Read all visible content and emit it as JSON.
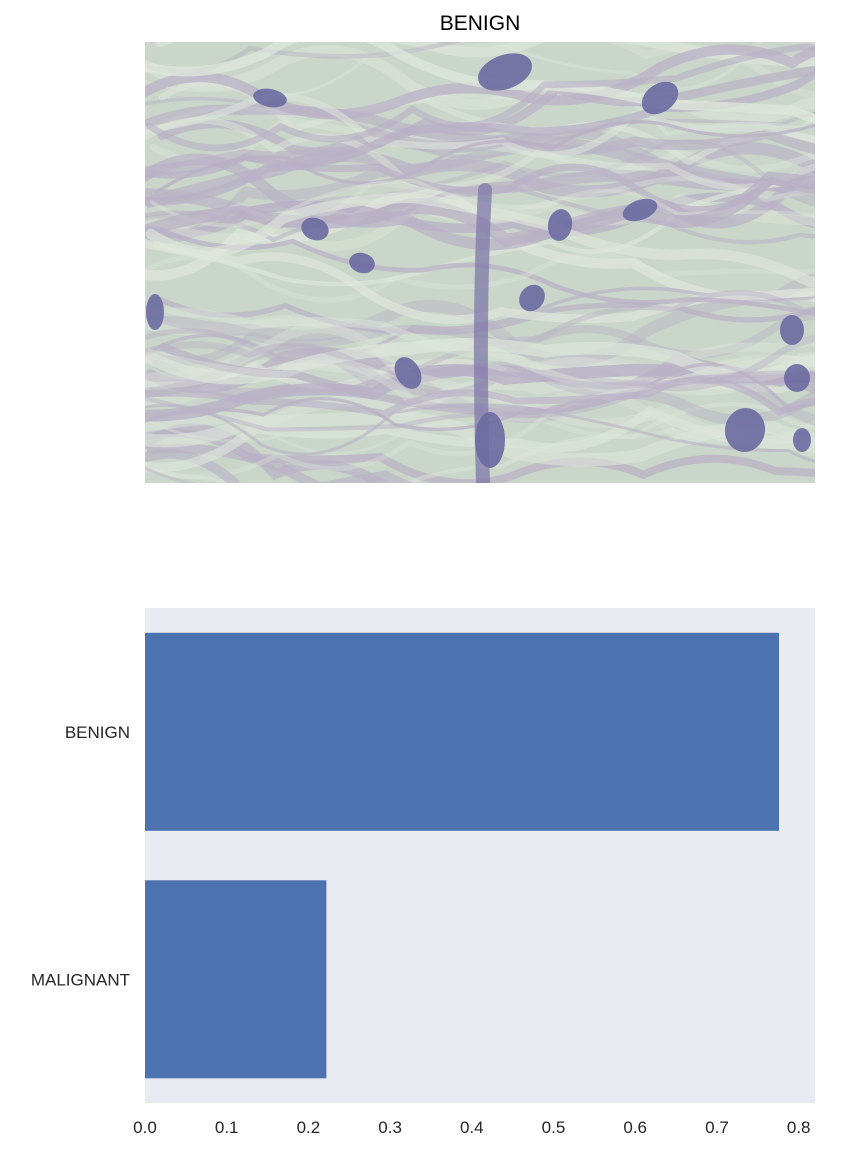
{
  "figure": {
    "image_panel": {
      "title": "BENIGN",
      "image_kind": "histology-tissue-micrograph",
      "palette": {
        "background": "#c9d6c9",
        "stroma": "#b9b0c6",
        "nuclei": "#6b6aa1"
      }
    }
  },
  "chart_data": {
    "type": "bar",
    "orientation": "horizontal",
    "title": "",
    "xlabel": "",
    "ylabel": "",
    "categories": [
      "BENIGN",
      "MALIGNANT"
    ],
    "values": [
      0.776,
      0.222
    ],
    "xlim": [
      0,
      0.82
    ],
    "x_ticks": [
      "0.0",
      "0.1",
      "0.2",
      "0.3",
      "0.4",
      "0.5",
      "0.6",
      "0.7",
      "0.8"
    ],
    "grid": false,
    "legend": "none",
    "colors": {
      "bar": "#4c72b0",
      "plot_background": "#eaeaf2"
    }
  }
}
